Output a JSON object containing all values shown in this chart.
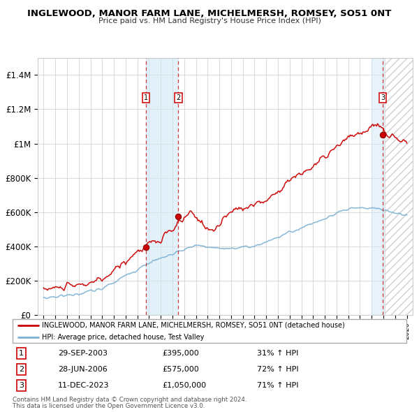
{
  "title": "INGLEWOOD, MANOR FARM LANE, MICHELMERSH, ROMSEY, SO51 0NT",
  "subtitle": "Price paid vs. HM Land Registry's House Price Index (HPI)",
  "red_label": "INGLEWOOD, MANOR FARM LANE, MICHELMERSH, ROMSEY, SO51 0NT (detached house)",
  "blue_label": "HPI: Average price, detached house, Test Valley",
  "sale_points": [
    {
      "num": 1,
      "date": "29-SEP-2003",
      "price": 395000,
      "x_year": 2003.75,
      "pct": "31%",
      "dir": "↑"
    },
    {
      "num": 2,
      "date": "28-JUN-2006",
      "price": 575000,
      "x_year": 2006.5,
      "pct": "72%",
      "dir": "↑"
    },
    {
      "num": 3,
      "date": "11-DEC-2023",
      "price": 1050000,
      "x_year": 2023.95,
      "pct": "71%",
      "dir": "↑"
    }
  ],
  "shade_x1": 2003.75,
  "shade_x2": 2006.5,
  "shade3_x1": 2023.0,
  "shade3_x2": 2024.1,
  "hatch_x": 2024.1,
  "ylim": [
    0,
    1500000
  ],
  "xlim_start": 1994.5,
  "xlim_end": 2026.5,
  "red_color": "#cc0000",
  "blue_color": "#7ab0d4",
  "footnote1": "Contains HM Land Registry data © Crown copyright and database right 2024.",
  "footnote2": "This data is licensed under the Open Government Licence v3.0."
}
